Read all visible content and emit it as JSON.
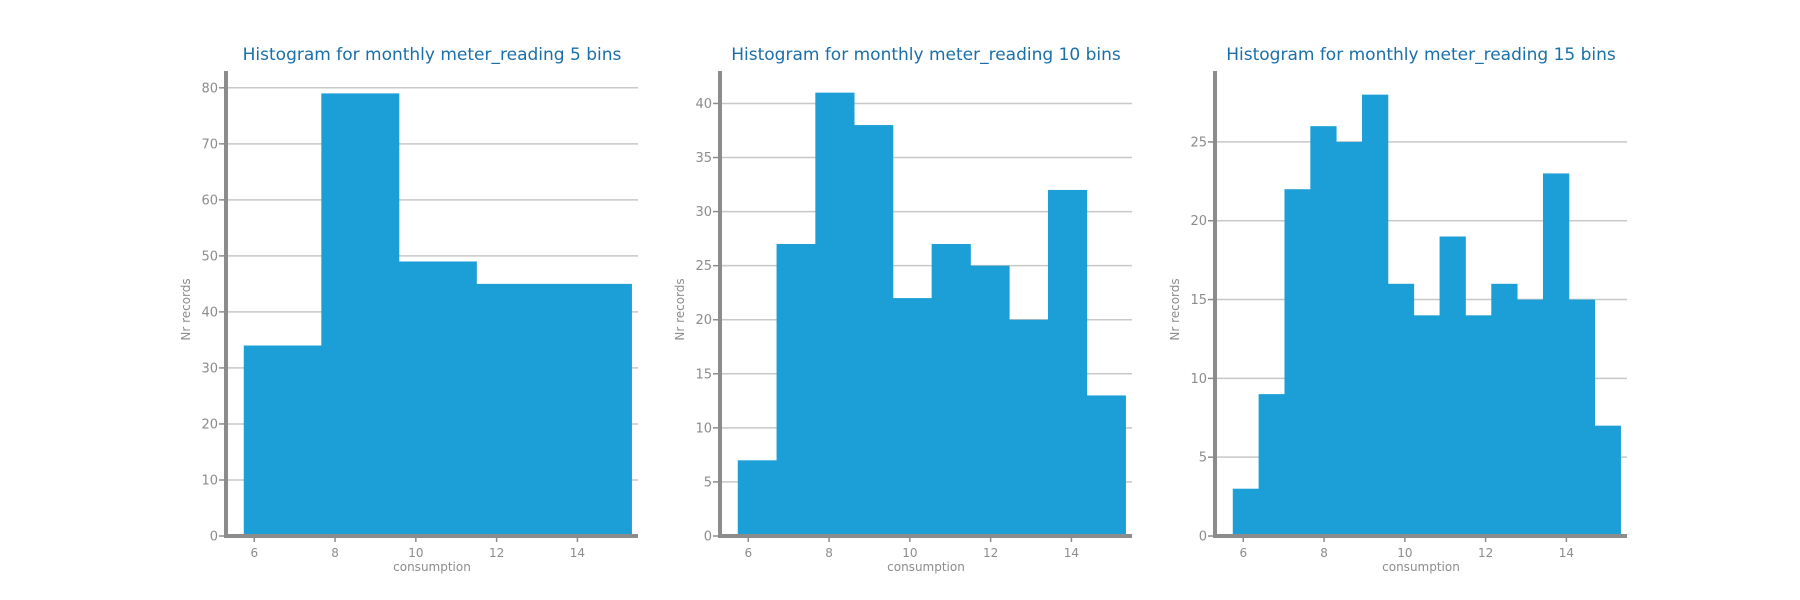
{
  "colors": {
    "bar": "#1b9fd6",
    "title": "#1b6fa8",
    "axis": "#8c8c8c",
    "grid": "#c8c8c8"
  },
  "chart_data": [
    {
      "type": "bar",
      "title": "Histogram for monthly meter_reading 5 bins",
      "xlabel": "consumption",
      "ylabel": "Nr records",
      "xlim": [
        5.3,
        15.5
      ],
      "ylim": [
        0,
        83
      ],
      "xticks": [
        6,
        8,
        10,
        12,
        14
      ],
      "yticks": [
        0,
        10,
        20,
        30,
        40,
        50,
        60,
        70,
        80
      ],
      "bin_edges": [
        5.74,
        7.66,
        9.58,
        11.5,
        13.42,
        15.34
      ],
      "values": [
        34,
        79,
        49,
        45,
        45
      ],
      "grid": "horizontal"
    },
    {
      "type": "bar",
      "title": "Histogram for monthly meter_reading 10 bins",
      "xlabel": "consumption",
      "ylabel": "Nr records",
      "xlim": [
        5.3,
        15.5
      ],
      "ylim": [
        0,
        43
      ],
      "xticks": [
        6,
        8,
        10,
        12,
        14
      ],
      "yticks": [
        0,
        5,
        10,
        15,
        20,
        25,
        30,
        35,
        40
      ],
      "bin_edges": [
        5.74,
        6.7,
        7.66,
        8.62,
        9.58,
        10.54,
        11.5,
        12.46,
        13.42,
        14.38,
        15.34
      ],
      "values": [
        7,
        27,
        41,
        38,
        22,
        27,
        25,
        20,
        32,
        13
      ],
      "grid": "horizontal"
    },
    {
      "type": "bar",
      "title": "Histogram for monthly meter_reading 15 bins",
      "xlabel": "consumption",
      "ylabel": "Nr records",
      "xlim": [
        5.3,
        15.5
      ],
      "ylim": [
        0,
        29.5
      ],
      "xticks": [
        6,
        8,
        10,
        12,
        14
      ],
      "yticks": [
        0,
        5,
        10,
        15,
        20,
        25
      ],
      "bin_edges": [
        5.74,
        6.38,
        7.02,
        7.66,
        8.3,
        8.94,
        9.58,
        10.22,
        10.86,
        11.5,
        12.14,
        12.78,
        13.42,
        14.06,
        14.7,
        15.34
      ],
      "values": [
        3,
        9,
        22,
        26,
        25,
        28,
        16,
        14,
        19,
        14,
        16,
        15,
        23,
        15,
        7
      ],
      "grid": "horizontal"
    }
  ]
}
